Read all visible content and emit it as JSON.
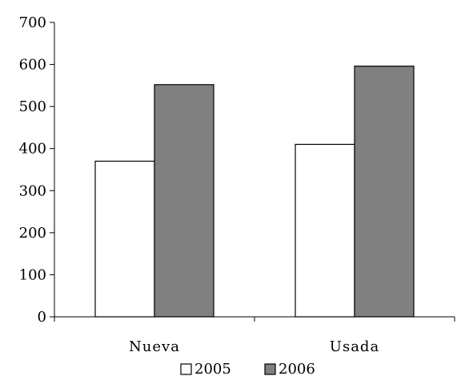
{
  "chart_data": {
    "type": "bar",
    "title": "",
    "xlabel": "",
    "ylabel": "",
    "categories": [
      "Nueva",
      "Usada"
    ],
    "series": [
      {
        "name": "2005",
        "values": [
          370,
          410
        ],
        "color": "#ffffff"
      },
      {
        "name": "2006",
        "values": [
          552,
          596
        ],
        "color": "#808080"
      }
    ],
    "ylim": [
      0,
      700
    ],
    "yticks": [
      "0",
      "100",
      "200",
      "300",
      "400",
      "500",
      "600",
      "700"
    ],
    "grid": false,
    "legend_position": "bottom"
  }
}
